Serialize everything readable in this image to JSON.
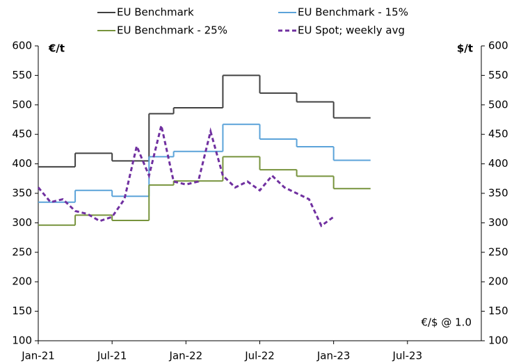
{
  "chart_data": {
    "type": "line",
    "y_unit_left": "€/t",
    "y_unit_right": "$/t",
    "annotation": "€/$ @ 1.0",
    "xlim": [
      "2021-01",
      "2024-01"
    ],
    "xticks": [
      {
        "value": "2021-01",
        "label": "Jan-21"
      },
      {
        "value": "2021-07",
        "label": "Jul-21"
      },
      {
        "value": "2022-01",
        "label": "Jan-22"
      },
      {
        "value": "2022-07",
        "label": "Jul-22"
      },
      {
        "value": "2023-01",
        "label": "Jan-23"
      },
      {
        "value": "2023-07",
        "label": "Jul-23"
      }
    ],
    "ylim": [
      100,
      600
    ],
    "yticks": [
      100,
      150,
      200,
      250,
      300,
      350,
      400,
      450,
      500,
      550,
      600
    ],
    "y2lim": [
      100,
      600
    ],
    "y2ticks": [
      100,
      150,
      200,
      250,
      300,
      350,
      400,
      450,
      500,
      550,
      600
    ],
    "series": [
      {
        "name": "EU Benchmark",
        "color": "#404040",
        "step": true,
        "dashed": false,
        "x": [
          "2021-01",
          "2021-04",
          "2021-07",
          "2021-10",
          "2021-12",
          "2022-04",
          "2022-07",
          "2022-10",
          "2023-01",
          "2023-04"
        ],
        "values": [
          395,
          418,
          405,
          485,
          495,
          550,
          520,
          505,
          478,
          478
        ]
      },
      {
        "name": "EU Benchmark - 15%",
        "color": "#5ba3d9",
        "step": true,
        "dashed": false,
        "x": [
          "2021-01",
          "2021-04",
          "2021-07",
          "2021-10",
          "2021-12",
          "2022-04",
          "2022-07",
          "2022-10",
          "2023-01",
          "2023-04"
        ],
        "values": [
          335,
          355,
          345,
          412,
          421,
          467,
          442,
          429,
          406,
          406
        ]
      },
      {
        "name": "EU Benchmark - 25%",
        "color": "#77933c",
        "step": true,
        "dashed": false,
        "x": [
          "2021-01",
          "2021-04",
          "2021-07",
          "2021-10",
          "2021-12",
          "2022-04",
          "2022-07",
          "2022-10",
          "2023-01",
          "2023-04"
        ],
        "values": [
          296,
          313,
          304,
          364,
          371,
          412,
          390,
          379,
          358,
          358
        ]
      },
      {
        "name": "EU Spot; weekly avg",
        "color": "#7030a0",
        "step": false,
        "dashed": true,
        "x": [
          "2021-01",
          "2021-02",
          "2021-03",
          "2021-04",
          "2021-05",
          "2021-06",
          "2021-07",
          "2021-08",
          "2021-09",
          "2021-10",
          "2021-11",
          "2021-12",
          "2022-01",
          "2022-02",
          "2022-03",
          "2022-04",
          "2022-05",
          "2022-06",
          "2022-07",
          "2022-08",
          "2022-09",
          "2022-10",
          "2022-11",
          "2022-12",
          "2023-01"
        ],
        "values": [
          360,
          335,
          340,
          320,
          315,
          303,
          310,
          340,
          430,
          380,
          465,
          370,
          365,
          370,
          455,
          380,
          360,
          370,
          355,
          380,
          360,
          350,
          340,
          295,
          310
        ]
      }
    ]
  }
}
